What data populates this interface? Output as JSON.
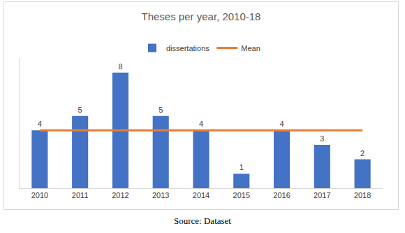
{
  "chart_data": {
    "type": "bar",
    "title": "Theses per year, 2010-18",
    "categories": [
      "2010",
      "2011",
      "2012",
      "2013",
      "2014",
      "2015",
      "2016",
      "2017",
      "2018"
    ],
    "series": [
      {
        "name": "dissertations",
        "type": "bar",
        "color": "#4472c4",
        "values": [
          4,
          5,
          8,
          5,
          4,
          1,
          4,
          3,
          2
        ]
      },
      {
        "name": "Mean",
        "type": "line",
        "color": "#ed7d31",
        "values": [
          4,
          4,
          4,
          4,
          4,
          4,
          4,
          4,
          4
        ]
      }
    ],
    "ylim": [
      0,
      9
    ],
    "grid": false,
    "legend": "top",
    "data_labels": true,
    "tick_labels": "x",
    "annotations": [
      "Source: Dataset"
    ]
  }
}
